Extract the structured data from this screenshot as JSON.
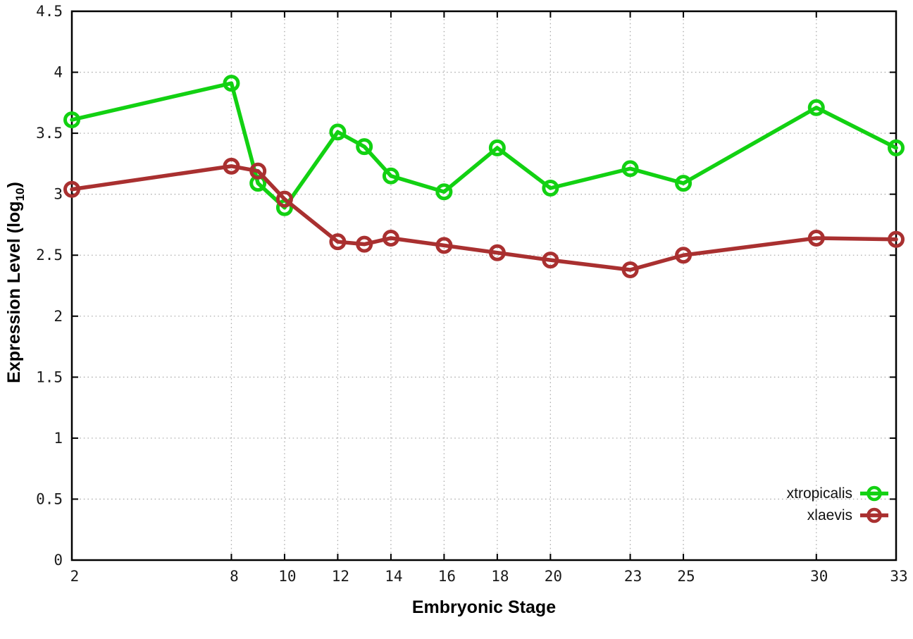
{
  "chart_data": {
    "type": "line",
    "title": "",
    "xlabel": "Embryonic Stage",
    "ylabel": "Expression Level (log10)",
    "ylabel_main": "Expression Level (log",
    "ylabel_sub": "10",
    "ylabel_close": ")",
    "xlim": [
      2,
      33
    ],
    "ylim": [
      0,
      4.5
    ],
    "grid": true,
    "legend_position": "bottom-right",
    "xticks": [
      2,
      8,
      10,
      12,
      14,
      16,
      18,
      20,
      23,
      25,
      30,
      33
    ],
    "xtick_labels": [
      "2",
      "8",
      "10",
      "12",
      "14",
      "16",
      "18",
      "20",
      "23",
      "25",
      "30",
      "33"
    ],
    "yticks": [
      0,
      0.5,
      1,
      1.5,
      2,
      2.5,
      3,
      3.5,
      4,
      4.5
    ],
    "ytick_labels": [
      "0",
      "0.5",
      "1",
      "1.5",
      "2",
      "2.5",
      "3",
      "3.5",
      "4",
      "4.5"
    ],
    "x": [
      2,
      8,
      9,
      10,
      12,
      13,
      14,
      16,
      18,
      20,
      23,
      25,
      30,
      33
    ],
    "series": [
      {
        "name": "xtropicalis",
        "color": "#12d112",
        "values": [
          3.61,
          3.91,
          3.09,
          2.89,
          3.51,
          3.39,
          3.15,
          3.02,
          3.38,
          3.05,
          3.21,
          3.09,
          3.71,
          3.38
        ]
      },
      {
        "name": "xlaevis",
        "color": "#a93030",
        "values": [
          3.04,
          3.23,
          3.19,
          2.96,
          2.61,
          2.59,
          2.64,
          2.58,
          2.52,
          2.46,
          2.38,
          2.5,
          2.64,
          2.63
        ]
      }
    ],
    "style": {
      "grid_color": "#b0b0b0",
      "border_color": "#000000",
      "tick_color": "#1a1a1a"
    }
  }
}
